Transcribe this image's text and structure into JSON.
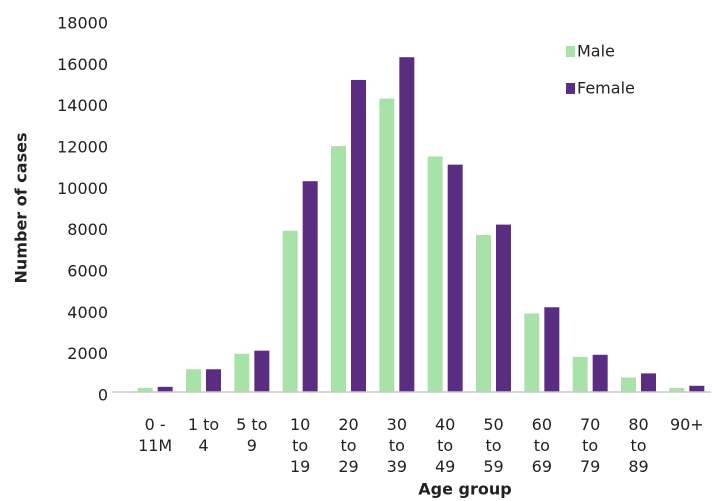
{
  "chart_data": {
    "type": "bar",
    "x_label": "Age group",
    "y_label": "Number of cases",
    "categories": [
      "0 -\n11M",
      "1 to\n4",
      "5 to\n9",
      "10\nto\n19",
      "20\nto\n29",
      "30\nto\n39",
      "40\nto\n49",
      "50\nto\n59",
      "60\nto\n69",
      "70\nto\n79",
      "80\nto\n89",
      "90+"
    ],
    "series": [
      {
        "name": "Male",
        "color": "#a9e2a9",
        "values": [
          200,
          1100,
          1850,
          7800,
          11900,
          14200,
          11400,
          7600,
          3800,
          1700,
          700,
          200
        ]
      },
      {
        "name": "Female",
        "color": "#5a2c82",
        "values": [
          250,
          1100,
          2000,
          10200,
          15100,
          16200,
          11000,
          8100,
          4100,
          1800,
          900,
          300
        ]
      }
    ],
    "ylim": [
      0,
      18000
    ],
    "yticks": [
      0,
      2000,
      4000,
      6000,
      8000,
      10000,
      12000,
      14000,
      16000,
      18000
    ],
    "legend": "top-right",
    "grid": false
  }
}
